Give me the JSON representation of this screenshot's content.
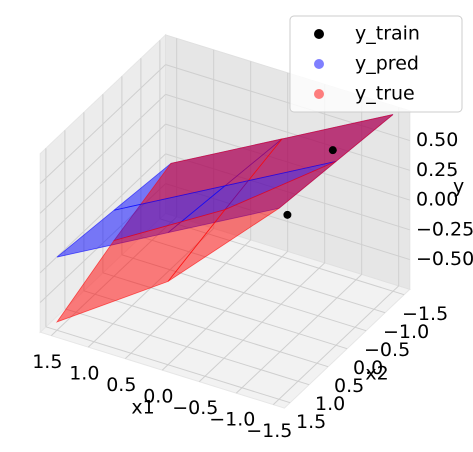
{
  "chart_data": {
    "type": "surface3d",
    "xlabel": "x1",
    "ylabel": "x2",
    "zlabel": "y",
    "xlim": [
      -1.65,
      1.65
    ],
    "ylim": [
      -1.65,
      1.65
    ],
    "zlim": [
      -0.75,
      0.75
    ],
    "xticks": [
      1.5,
      {
        "value": 1,
        "label": "1.0"
      },
      0.5,
      {
        "value": 0,
        "label": "0.0"
      },
      {
        "value": -0.5,
        "label": "−0.5"
      },
      {
        "value": -1,
        "label": "−1.0"
      },
      {
        "value": -1.5,
        "label": "−1.5"
      }
    ],
    "yticks": [
      {
        "value": -1.5,
        "label": "−1.5"
      },
      {
        "value": -1,
        "label": "−1.0"
      },
      {
        "value": -0.5,
        "label": "−0.5"
      },
      {
        "value": 0,
        "label": "0.0"
      },
      0.5,
      {
        "value": 1,
        "label": "1.0"
      },
      1.5
    ],
    "zticks": [
      {
        "value": 0.5,
        "label": "0.50"
      },
      0.25,
      {
        "value": 0,
        "label": "0.00"
      },
      {
        "value": -0.25,
        "label": "−0.25"
      },
      {
        "value": -0.5,
        "label": "−0.50"
      }
    ],
    "grid": true,
    "legend": "upper right",
    "grid_x": [
      -1.5,
      0,
      1.5
    ],
    "grid_y": [
      -1.5,
      0,
      1.5
    ],
    "series": [
      {
        "name": "y_train",
        "type": "scatter",
        "color": "#000000",
        "x": [
          -1.2,
          -1.1
        ],
        "y": [
          -0.5,
          0.5
        ],
        "values": [
          0.68,
          0.42
        ]
      },
      {
        "name": "y_pred",
        "type": "surface",
        "color": "#0000ff",
        "alpha": 0.5,
        "values": [
          [
            0.735,
            0.24,
            -0.255
          ],
          [
            0.795,
            0.3,
            -0.195
          ],
          [
            0.855,
            0.36,
            -0.135
          ]
        ]
      },
      {
        "name": "y_true",
        "type": "surface",
        "color": "#ff0000",
        "alpha": 0.5,
        "values": [
          [
            0.735,
            0.24,
            -0.255
          ],
          [
            0.795,
            0.1,
            -0.45
          ],
          [
            0.855,
            -0.05,
            -0.68
          ]
        ]
      }
    ]
  }
}
